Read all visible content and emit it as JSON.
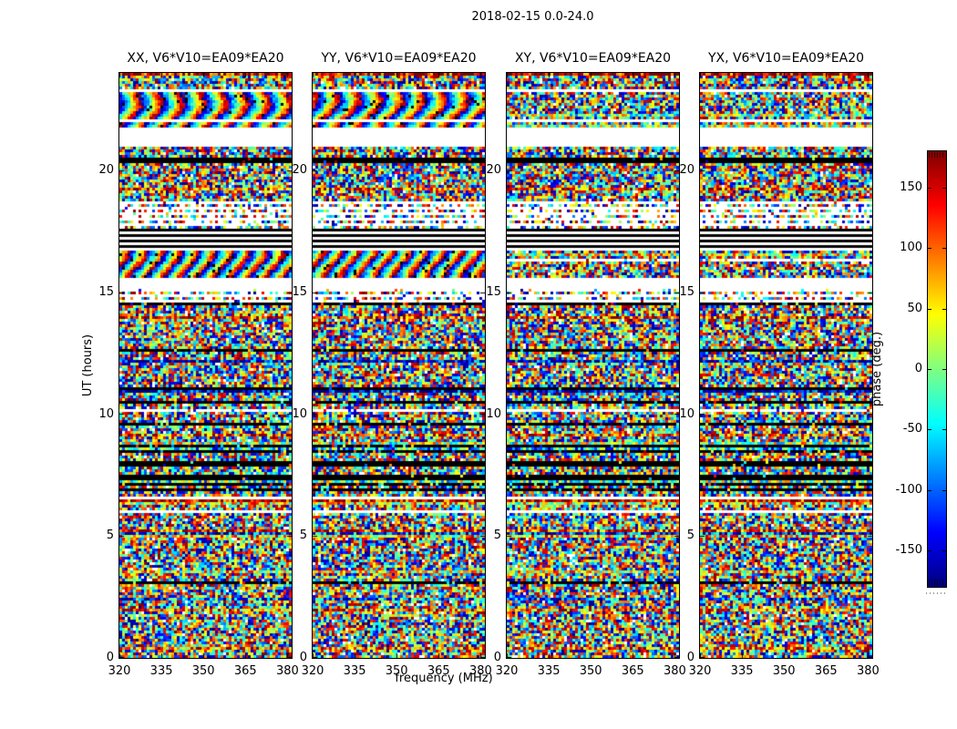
{
  "figure": {
    "suptitle": "2018-02-15 0.0-24.0",
    "background": "#ffffff"
  },
  "chart_data": {
    "type": "heatmap",
    "description": "Four side-by-side dynamic spectra of visibility phase (frequency vs UT) for polarization products of baseline V6*V10=EA09*EA20, jet colormap, with shared time gaps and flagged (black) bands.",
    "panels": [
      {
        "title": "XX, V6*V10=EA09*EA20",
        "pol": "XX",
        "wave": true,
        "seed": 101
      },
      {
        "title": "YY, V6*V10=EA09*EA20",
        "pol": "YY",
        "wave": true,
        "seed": 202
      },
      {
        "title": "XY, V6*V10=EA09*EA20",
        "pol": "XY",
        "wave": false,
        "seed": 303
      },
      {
        "title": "YX, V6*V10=EA09*EA20",
        "pol": "YX",
        "wave": false,
        "seed": 404
      }
    ],
    "xlabel": "frequency (MHz)",
    "ylabel": "UT (hours)",
    "x_ticks": [
      320,
      335,
      350,
      365,
      380
    ],
    "x_range": [
      320,
      381.5
    ],
    "y_ticks": [
      0,
      5,
      10,
      15,
      20
    ],
    "y_range": [
      0,
      24
    ],
    "grid": false,
    "colormap": "jet",
    "colorbar": {
      "label": "phase (deg.)",
      "ticks": [
        150,
        100,
        50,
        0,
        -50,
        -100,
        -150
      ],
      "range": [
        -180,
        180
      ],
      "position": "right"
    },
    "time_bands": [
      {
        "from": 0.0,
        "to": 0.026,
        "type": "noise"
      },
      {
        "from": 0.026,
        "to": 0.034,
        "type": "white"
      },
      {
        "from": 0.034,
        "to": 0.079,
        "type": "wave"
      },
      {
        "from": 0.079,
        "to": 0.083,
        "type": "white"
      },
      {
        "from": 0.083,
        "to": 0.093,
        "type": "wave"
      },
      {
        "from": 0.093,
        "to": 0.125,
        "type": "white"
      },
      {
        "from": 0.125,
        "to": 0.146,
        "type": "noise"
      },
      {
        "from": 0.146,
        "to": 0.154,
        "type": "black"
      },
      {
        "from": 0.154,
        "to": 0.171,
        "type": "noise"
      },
      {
        "from": 0.171,
        "to": 0.175,
        "type": "black"
      },
      {
        "from": 0.175,
        "to": 0.221,
        "type": "noise"
      },
      {
        "from": 0.221,
        "to": 0.268,
        "type": "sparse"
      },
      {
        "from": 0.268,
        "to": 0.305,
        "type": "blackcluster"
      },
      {
        "from": 0.305,
        "to": 0.35,
        "type": "wave2"
      },
      {
        "from": 0.35,
        "to": 0.37,
        "type": "white"
      },
      {
        "from": 0.37,
        "to": 0.392,
        "type": "sparse"
      },
      {
        "from": 0.392,
        "to": 0.537,
        "type": "noise"
      },
      {
        "from": 0.537,
        "to": 0.543,
        "type": "black"
      },
      {
        "from": 0.543,
        "to": 0.662,
        "type": "noise"
      },
      {
        "from": 0.662,
        "to": 0.674,
        "type": "black"
      },
      {
        "from": 0.674,
        "to": 0.685,
        "type": "noise"
      },
      {
        "from": 0.685,
        "to": 0.696,
        "type": "black"
      },
      {
        "from": 0.696,
        "to": 0.724,
        "type": "noise"
      },
      {
        "from": 0.724,
        "to": 0.73,
        "type": "white"
      },
      {
        "from": 0.73,
        "to": 0.747,
        "type": "noise"
      },
      {
        "from": 0.747,
        "to": 0.754,
        "type": "white"
      },
      {
        "from": 0.754,
        "to": 1.001,
        "type": "noise"
      }
    ]
  }
}
